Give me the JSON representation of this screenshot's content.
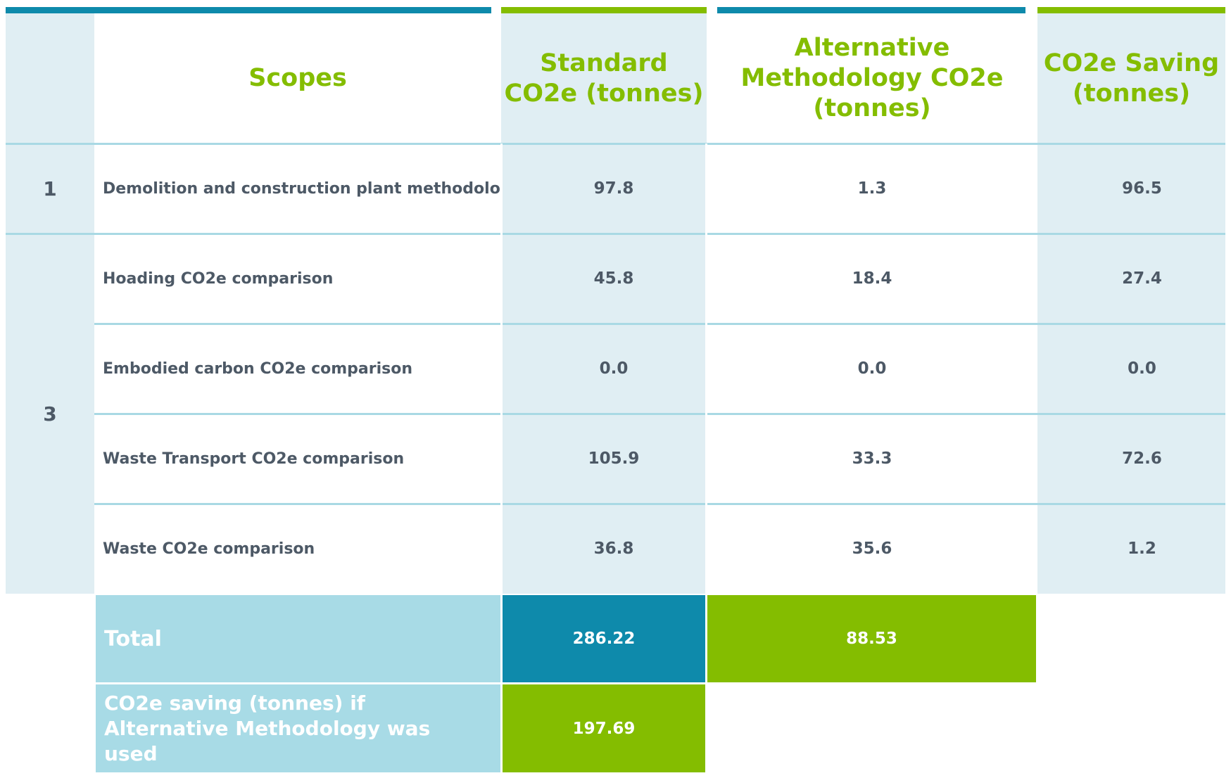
{
  "header": {
    "scopes": "Scopes",
    "standard": "Standard CO2e (tonnes)",
    "alternative": "Alternative Methodology CO2e (tonnes)",
    "saving": "CO2e Saving (tonnes)"
  },
  "rows": [
    {
      "scope": "1",
      "description": "Demolition and construction plant methodology",
      "standard": "97.8",
      "alternative": "1.3",
      "saving": "96.5"
    },
    {
      "scope": "3",
      "description": "Hoading CO2e comparison",
      "standard": "45.8",
      "alternative": "18.4",
      "saving": "27.4"
    },
    {
      "scope": "3",
      "description": "Embodied carbon CO2e comparison",
      "standard": "0.0",
      "alternative": "0.0",
      "saving": "0.0"
    },
    {
      "scope": "3",
      "description": "Waste Transport CO2e comparison",
      "standard": "105.9",
      "alternative": "33.3",
      "saving": "72.6"
    },
    {
      "scope": "3",
      "description": "Waste CO2e comparison",
      "standard": "36.8",
      "alternative": "35.6",
      "saving": "1.2"
    }
  ],
  "total": {
    "label": "Total",
    "standard": "286.22",
    "alternative": "88.53"
  },
  "saving_summary": {
    "label": "CO2e saving (tonnes) if Alternative Methodology was used",
    "value": "197.69"
  },
  "colors": {
    "teal": "#0e8aab",
    "green": "#84bd00",
    "light_blue": "#e0eef3",
    "total_label_blue": "#a8dbe6",
    "text_gray": "#4d5966"
  }
}
